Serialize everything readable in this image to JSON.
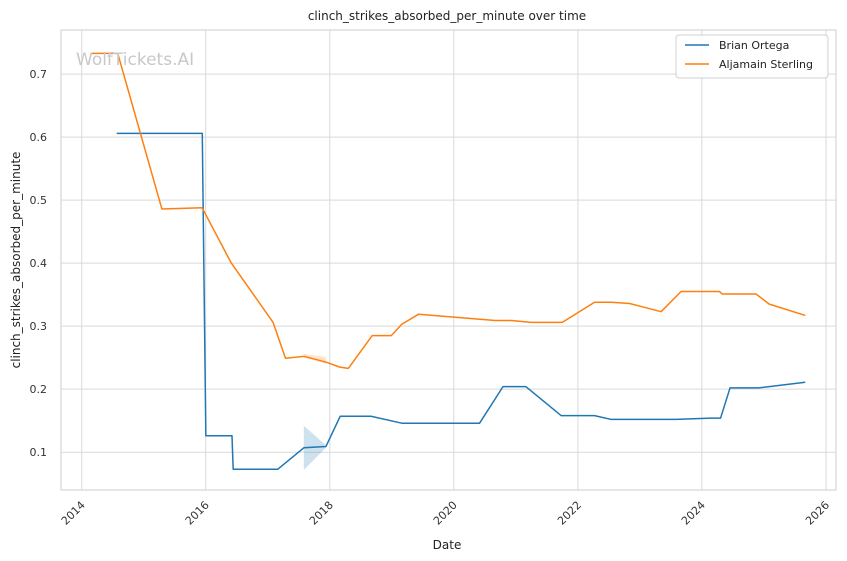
{
  "chart_data": {
    "type": "line",
    "title": "clinch_strikes_absorbed_per_minute over time",
    "xlabel": "Date",
    "ylabel": "clinch_strikes_absorbed_per_minute",
    "watermark": "WolfTickets.AI",
    "x_axis": "date",
    "xlim": [
      "2013-09-01",
      "2026-03-01"
    ],
    "ylim": [
      0.04,
      0.77
    ],
    "x_ticks": [
      "2014",
      "2016",
      "2018",
      "2020",
      "2022",
      "2024",
      "2026"
    ],
    "y_ticks": [
      0.1,
      0.2,
      0.3,
      0.4,
      0.5,
      0.6,
      0.7
    ],
    "grid": true,
    "legend": "top-right",
    "series": [
      {
        "name": "Brian Ortega",
        "color": "#1f77b4",
        "points": [
          [
            "2014-07-26",
            0.606
          ],
          [
            "2015-12-05",
            0.606
          ],
          [
            "2015-12-12",
            0.606
          ],
          [
            "2016-01-02",
            0.126
          ],
          [
            "2016-06-04",
            0.126
          ],
          [
            "2016-06-11",
            0.073
          ],
          [
            "2017-03-01",
            0.073
          ],
          [
            "2017-08-01",
            0.107
          ],
          [
            "2017-12-09",
            0.109
          ],
          [
            "2018-03-03",
            0.157
          ],
          [
            "2018-09-01",
            0.157
          ],
          [
            "2019-03-01",
            0.146
          ],
          [
            "2020-06-01",
            0.146
          ],
          [
            "2020-10-17",
            0.204
          ],
          [
            "2021-03-01",
            0.204
          ],
          [
            "2021-09-25",
            0.158
          ],
          [
            "2022-04-09",
            0.158
          ],
          [
            "2022-07-16",
            0.152
          ],
          [
            "2023-08-01",
            0.152
          ],
          [
            "2024-02-24",
            0.154
          ],
          [
            "2024-04-20",
            0.154
          ],
          [
            "2024-06-15",
            0.202
          ],
          [
            "2024-12-01",
            0.202
          ],
          [
            "2025-09-01",
            0.211
          ]
        ],
        "band": [
          [
            "2017-08-01",
            0.072,
            0.142
          ],
          [
            "2017-12-09",
            0.107,
            0.111
          ]
        ]
      },
      {
        "name": "Aljamain Sterling",
        "color": "#ff7f0e",
        "points": [
          [
            "2014-02-22",
            0.733
          ],
          [
            "2014-08-01",
            0.733
          ],
          [
            "2015-04-18",
            0.486
          ],
          [
            "2015-12-11",
            0.488
          ],
          [
            "2016-05-29",
            0.401
          ],
          [
            "2017-02-01",
            0.306
          ],
          [
            "2017-04-15",
            0.249
          ],
          [
            "2017-08-01",
            0.252
          ],
          [
            "2017-12-09",
            0.243
          ],
          [
            "2018-03-01",
            0.235
          ],
          [
            "2018-04-20",
            0.233
          ],
          [
            "2018-09-08",
            0.285
          ],
          [
            "2018-12-29",
            0.285
          ],
          [
            "2019-03-01",
            0.303
          ],
          [
            "2019-06-08",
            0.319
          ],
          [
            "2020-09-01",
            0.309
          ],
          [
            "2020-12-05",
            0.309
          ],
          [
            "2021-04-01",
            0.306
          ],
          [
            "2021-10-01",
            0.306
          ],
          [
            "2022-04-09",
            0.338
          ],
          [
            "2022-07-16",
            0.338
          ],
          [
            "2022-11-01",
            0.336
          ],
          [
            "2023-05-06",
            0.323
          ],
          [
            "2023-09-01",
            0.355
          ],
          [
            "2024-04-13",
            0.355
          ],
          [
            "2024-05-01",
            0.351
          ],
          [
            "2024-11-15",
            0.351
          ],
          [
            "2025-02-01",
            0.335
          ],
          [
            "2025-09-01",
            0.317
          ]
        ],
        "band": [
          [
            "2017-08-01",
            0.252,
            0.256
          ],
          [
            "2017-12-09",
            0.24,
            0.251
          ]
        ]
      }
    ]
  }
}
